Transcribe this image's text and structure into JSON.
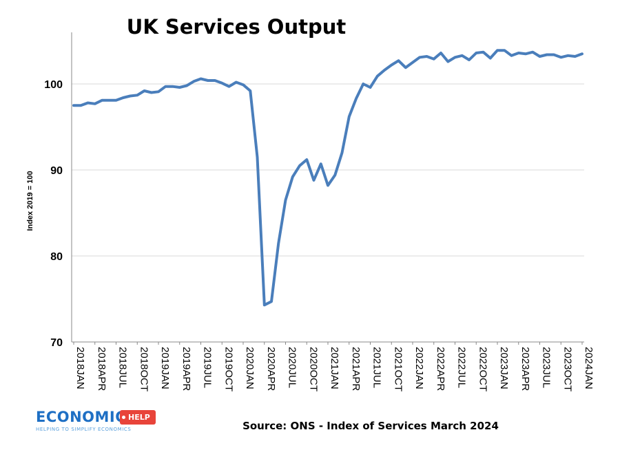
{
  "title": "UK Services Output",
  "source": "Source: ONS - Index of Services March 2024",
  "logo": {
    "word": "ECONOMICS",
    "tag": "HELP",
    "tagline": "HELPING TO SIMPLIFY ECONOMICS"
  },
  "colors": {
    "line": "#4a7ebb",
    "grid": "#d9d9d9",
    "axis": "#888888",
    "logo_blue": "#1e6fc4",
    "logo_red": "#e8443a"
  },
  "chart_data": {
    "type": "line",
    "title": "UK Services Output",
    "xlabel": "",
    "ylabel": "Index 2019 = 100",
    "ylim": [
      70,
      106
    ],
    "yticks": [
      70,
      80,
      90,
      100
    ],
    "grid": true,
    "x_tick_labels": [
      "2018JAN",
      "2018APR",
      "2018JUL",
      "2018OCT",
      "2019JAN",
      "2019APR",
      "2019JUL",
      "2019OCT",
      "2020JAN",
      "2020APR",
      "2020JUL",
      "2020OCT",
      "2021JAN",
      "2021APR",
      "2021JUL",
      "2021OCT",
      "2022JAN",
      "2022APR",
      "2022JUL",
      "2022OCT",
      "2023JAN",
      "2023APR",
      "2023JUL",
      "2023OCT",
      "2024JAN"
    ],
    "series": [
      {
        "values": [
          97.5,
          97.5,
          97.8,
          97.7,
          98.1,
          98.1,
          98.1,
          98.4,
          98.6,
          98.7,
          99.2,
          99.0,
          99.1,
          99.7,
          99.7,
          99.6,
          99.8,
          100.3,
          100.6,
          100.4,
          100.4,
          100.1,
          99.7,
          100.2,
          99.9,
          99.2,
          91.5,
          74.3,
          74.7,
          81.5,
          86.5,
          89.2,
          90.5,
          91.2,
          88.8,
          90.7,
          88.2,
          89.4,
          92.0,
          96.2,
          98.3,
          100.0,
          99.6,
          100.9,
          101.6,
          102.2,
          102.7,
          101.9,
          102.5,
          103.1,
          103.2,
          102.9,
          103.6,
          102.6,
          103.1,
          103.3,
          102.8,
          103.6,
          103.7,
          103.0,
          103.9,
          103.9,
          103.3,
          103.6,
          103.5,
          103.7,
          103.2,
          103.4,
          103.4,
          103.1,
          103.3,
          103.2,
          103.5
        ]
      }
    ]
  }
}
